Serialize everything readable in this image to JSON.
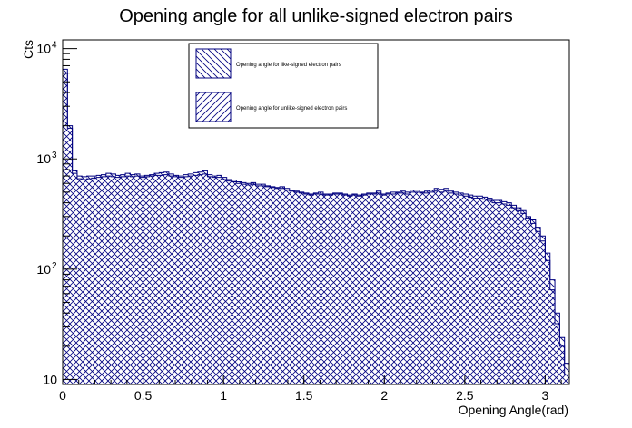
{
  "chart_data": {
    "type": "histogram",
    "title": "Opening angle for all unlike-signed electron pairs",
    "xlabel": "Opening Angle(rad)",
    "ylabel": "Cts",
    "xlim": [
      0,
      3.15
    ],
    "ylim": [
      9,
      12000
    ],
    "y_scale": "log",
    "x_ticks": [
      {
        "value": 0,
        "label": "0"
      },
      {
        "value": 0.5,
        "label": "0.5"
      },
      {
        "value": 1,
        "label": "1"
      },
      {
        "value": 1.5,
        "label": "1.5"
      },
      {
        "value": 2,
        "label": "2"
      },
      {
        "value": 2.5,
        "label": "2.5"
      },
      {
        "value": 3,
        "label": "3"
      }
    ],
    "y_ticks": [
      {
        "value": 10,
        "base": "10",
        "exp": ""
      },
      {
        "value": 100,
        "base": "10",
        "exp": "2"
      },
      {
        "value": 1000,
        "base": "10",
        "exp": "3"
      },
      {
        "value": 10000,
        "base": "10",
        "exp": "4"
      }
    ],
    "bin_edges_start": 0,
    "bin_width": 0.03,
    "series": [
      {
        "name": "Opening angle for like-signed electron pairs",
        "color": "#00007f",
        "hatch": "backslash",
        "values": [
          6500,
          2000,
          780,
          700,
          690,
          700,
          700,
          710,
          720,
          740,
          730,
          710,
          720,
          740,
          720,
          730,
          700,
          710,
          720,
          740,
          750,
          760,
          730,
          710,
          700,
          720,
          730,
          750,
          760,
          780,
          720,
          700,
          710,
          680,
          650,
          640,
          620,
          610,
          600,
          610,
          590,
          590,
          570,
          560,
          550,
          560,
          540,
          520,
          510,
          500,
          490,
          480,
          490,
          500,
          480,
          480,
          490,
          490,
          480,
          470,
          480,
          470,
          480,
          490,
          490,
          510,
          480,
          490,
          500,
          500,
          510,
          500,
          520,
          520,
          500,
          510,
          520,
          540,
          530,
          540,
          510,
          500,
          490,
          480,
          470,
          460,
          460,
          450,
          440,
          420,
          420,
          410,
          400,
          380,
          360,
          340,
          300,
          280,
          240,
          200,
          140,
          80,
          40,
          24,
          14
        ]
      },
      {
        "name": "Opening angle for unlike-signed electron pairs",
        "color": "#00007f",
        "hatch": "forward",
        "values": [
          6000,
          1900,
          740,
          660,
          650,
          660,
          670,
          680,
          690,
          700,
          690,
          680,
          690,
          700,
          690,
          700,
          680,
          690,
          700,
          710,
          710,
          720,
          700,
          690,
          680,
          690,
          700,
          710,
          720,
          730,
          690,
          680,
          680,
          650,
          630,
          620,
          600,
          590,
          580,
          590,
          570,
          570,
          560,
          550,
          540,
          540,
          520,
          510,
          500,
          490,
          480,
          470,
          480,
          480,
          470,
          470,
          480,
          480,
          470,
          460,
          470,
          460,
          470,
          480,
          480,
          490,
          470,
          480,
          480,
          490,
          490,
          480,
          500,
          500,
          490,
          490,
          500,
          510,
          500,
          510,
          490,
          480,
          470,
          460,
          450,
          440,
          440,
          430,
          420,
          400,
          400,
          390,
          380,
          360,
          340,
          320,
          290,
          260,
          220,
          180,
          120,
          65,
          32,
          20,
          11
        ]
      }
    ],
    "legend_position": "top-center"
  }
}
